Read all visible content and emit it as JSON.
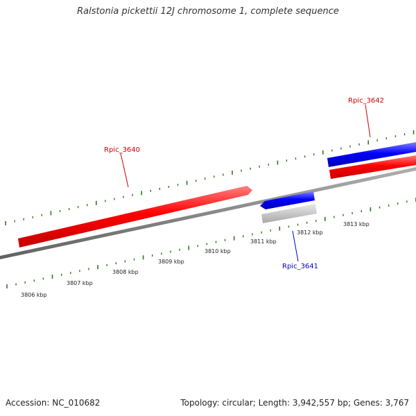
{
  "title": "Ralstonia pickettii 12J chromosome 1, complete sequence",
  "footer": {
    "accession": "Accession: NC_010682",
    "summary": "Topology: circular; Length: 3,942,557 bp; Genes: 3,767"
  },
  "ruler": {
    "unit": "kbp",
    "labels": [
      "3806 kbp",
      "3807 kbp",
      "3808 kbp",
      "3809 kbp",
      "3810 kbp",
      "3811 kbp",
      "3812 kbp",
      "3813 kbp"
    ]
  },
  "genes": [
    {
      "id": "Rpic_3640",
      "label": "Rpic_3640",
      "strand": "forward",
      "feature": "CDS",
      "color": "#ff0000"
    },
    {
      "id": "Rpic_3641",
      "label": "Rpic_3641",
      "strand": "reverse",
      "feature": "CDS",
      "color": "#0000ff"
    },
    {
      "id": "Rpic_3642",
      "label": "Rpic_3642",
      "strand": "forward",
      "feature": "CDS",
      "color": "#ff0000"
    }
  ],
  "colors": {
    "cds_forward": "#ff0000",
    "cds_reverse": "#0000ff",
    "gene_label_forward": "#cc0000",
    "gene_label_reverse": "#0000cc",
    "tick": "#2a7a1a",
    "backbone": "#808080",
    "gene_shadow": "#c8c8c8"
  }
}
